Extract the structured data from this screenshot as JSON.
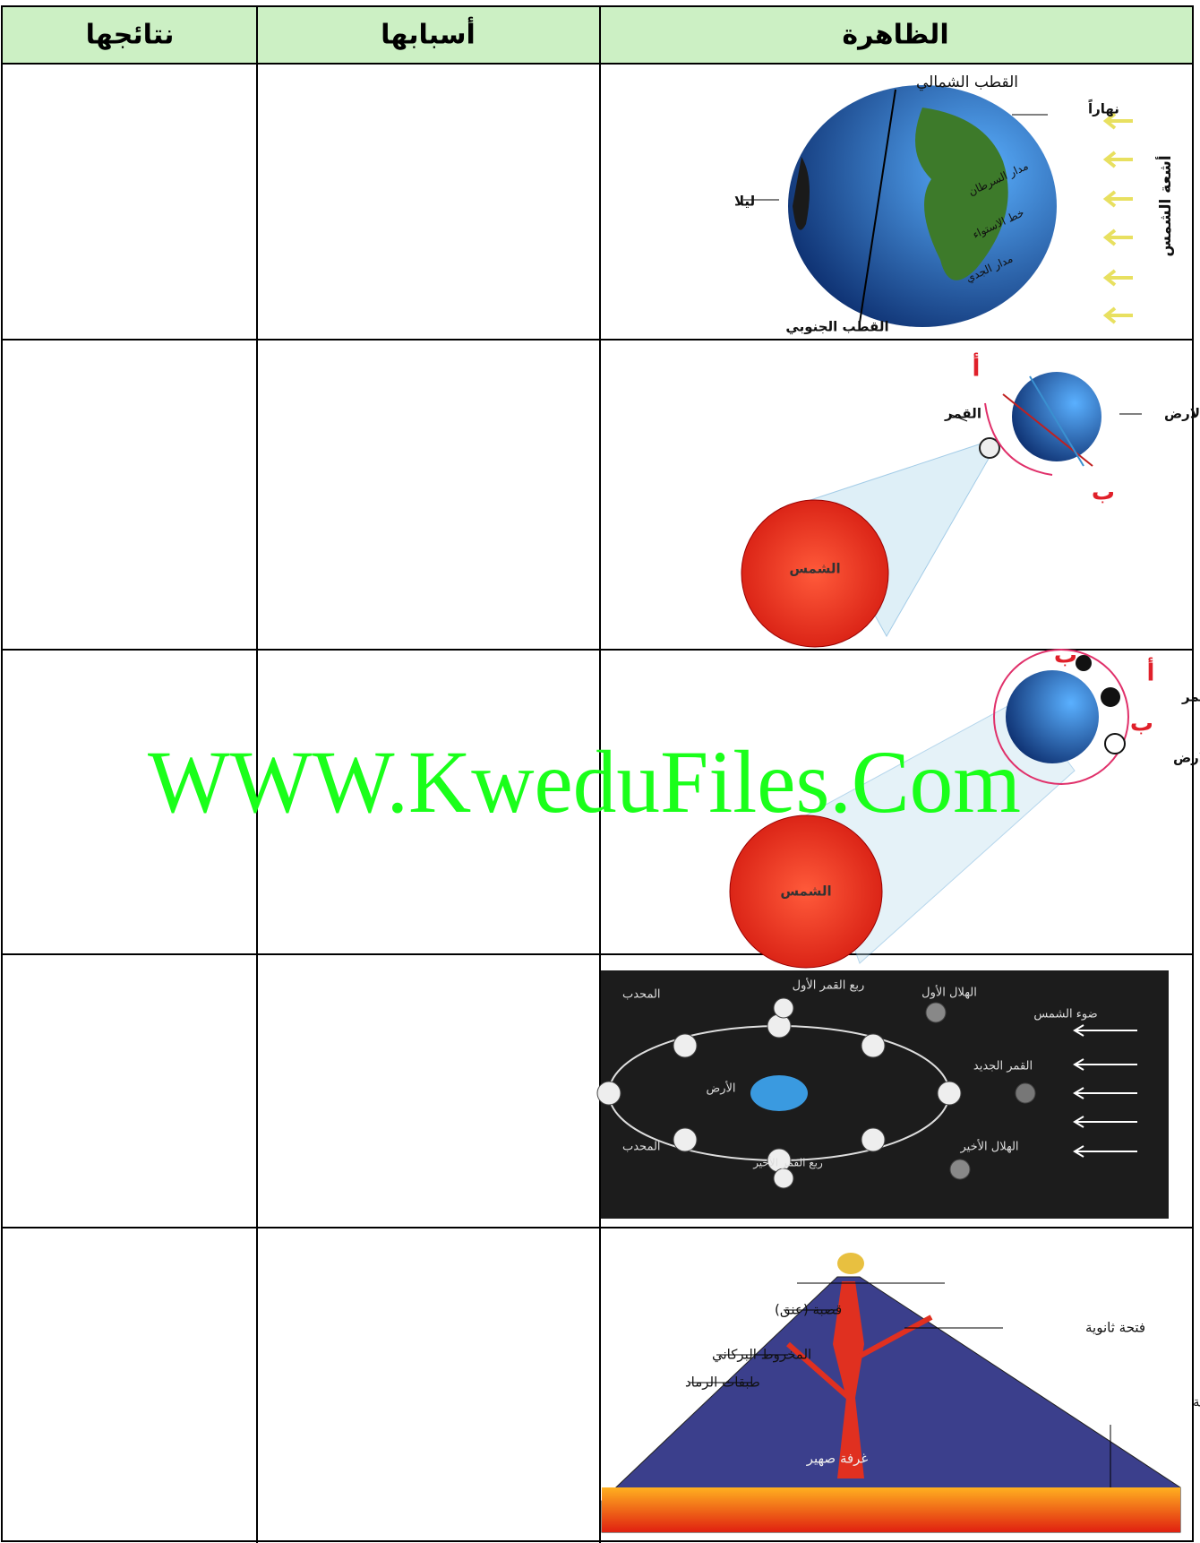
{
  "table": {
    "headers": [
      "الظاهرة",
      "أسبابها",
      "نتائجها"
    ],
    "rows": [
      {
        "figure_labels": [
          "القطب الشمالي",
          "نهاراً",
          "أشعة الشمس",
          "ليلا",
          "مدار السرطان",
          "خط الاستواء",
          "مدار الجدي",
          "القطب الجنوبي"
        ]
      },
      {
        "figure_labels": [
          "الارض",
          "القمر",
          "أ",
          "ب",
          "الشمس"
        ]
      },
      {
        "figure_labels": [
          "القمر",
          "أ",
          "ب",
          "ب",
          "الارض",
          "الشمس"
        ]
      },
      {
        "figure_labels": [
          "ربع القمر الأول",
          "الهلال الأول",
          "ضوء الشمس",
          "القمر الجديد",
          "الأرض",
          "الهلال الأخير",
          "ربع القمر الأخير",
          "المحدب",
          "المحدب"
        ]
      },
      {
        "figure_labels": [
          "قصبة (عنق)",
          "فتحة ثانوية",
          "المخروط البركاني",
          "طبقات الرماد",
          "طبقات صخرية",
          "غرفة صهير"
        ]
      }
    ]
  },
  "watermark": "WWW.KweduFiles.Com"
}
